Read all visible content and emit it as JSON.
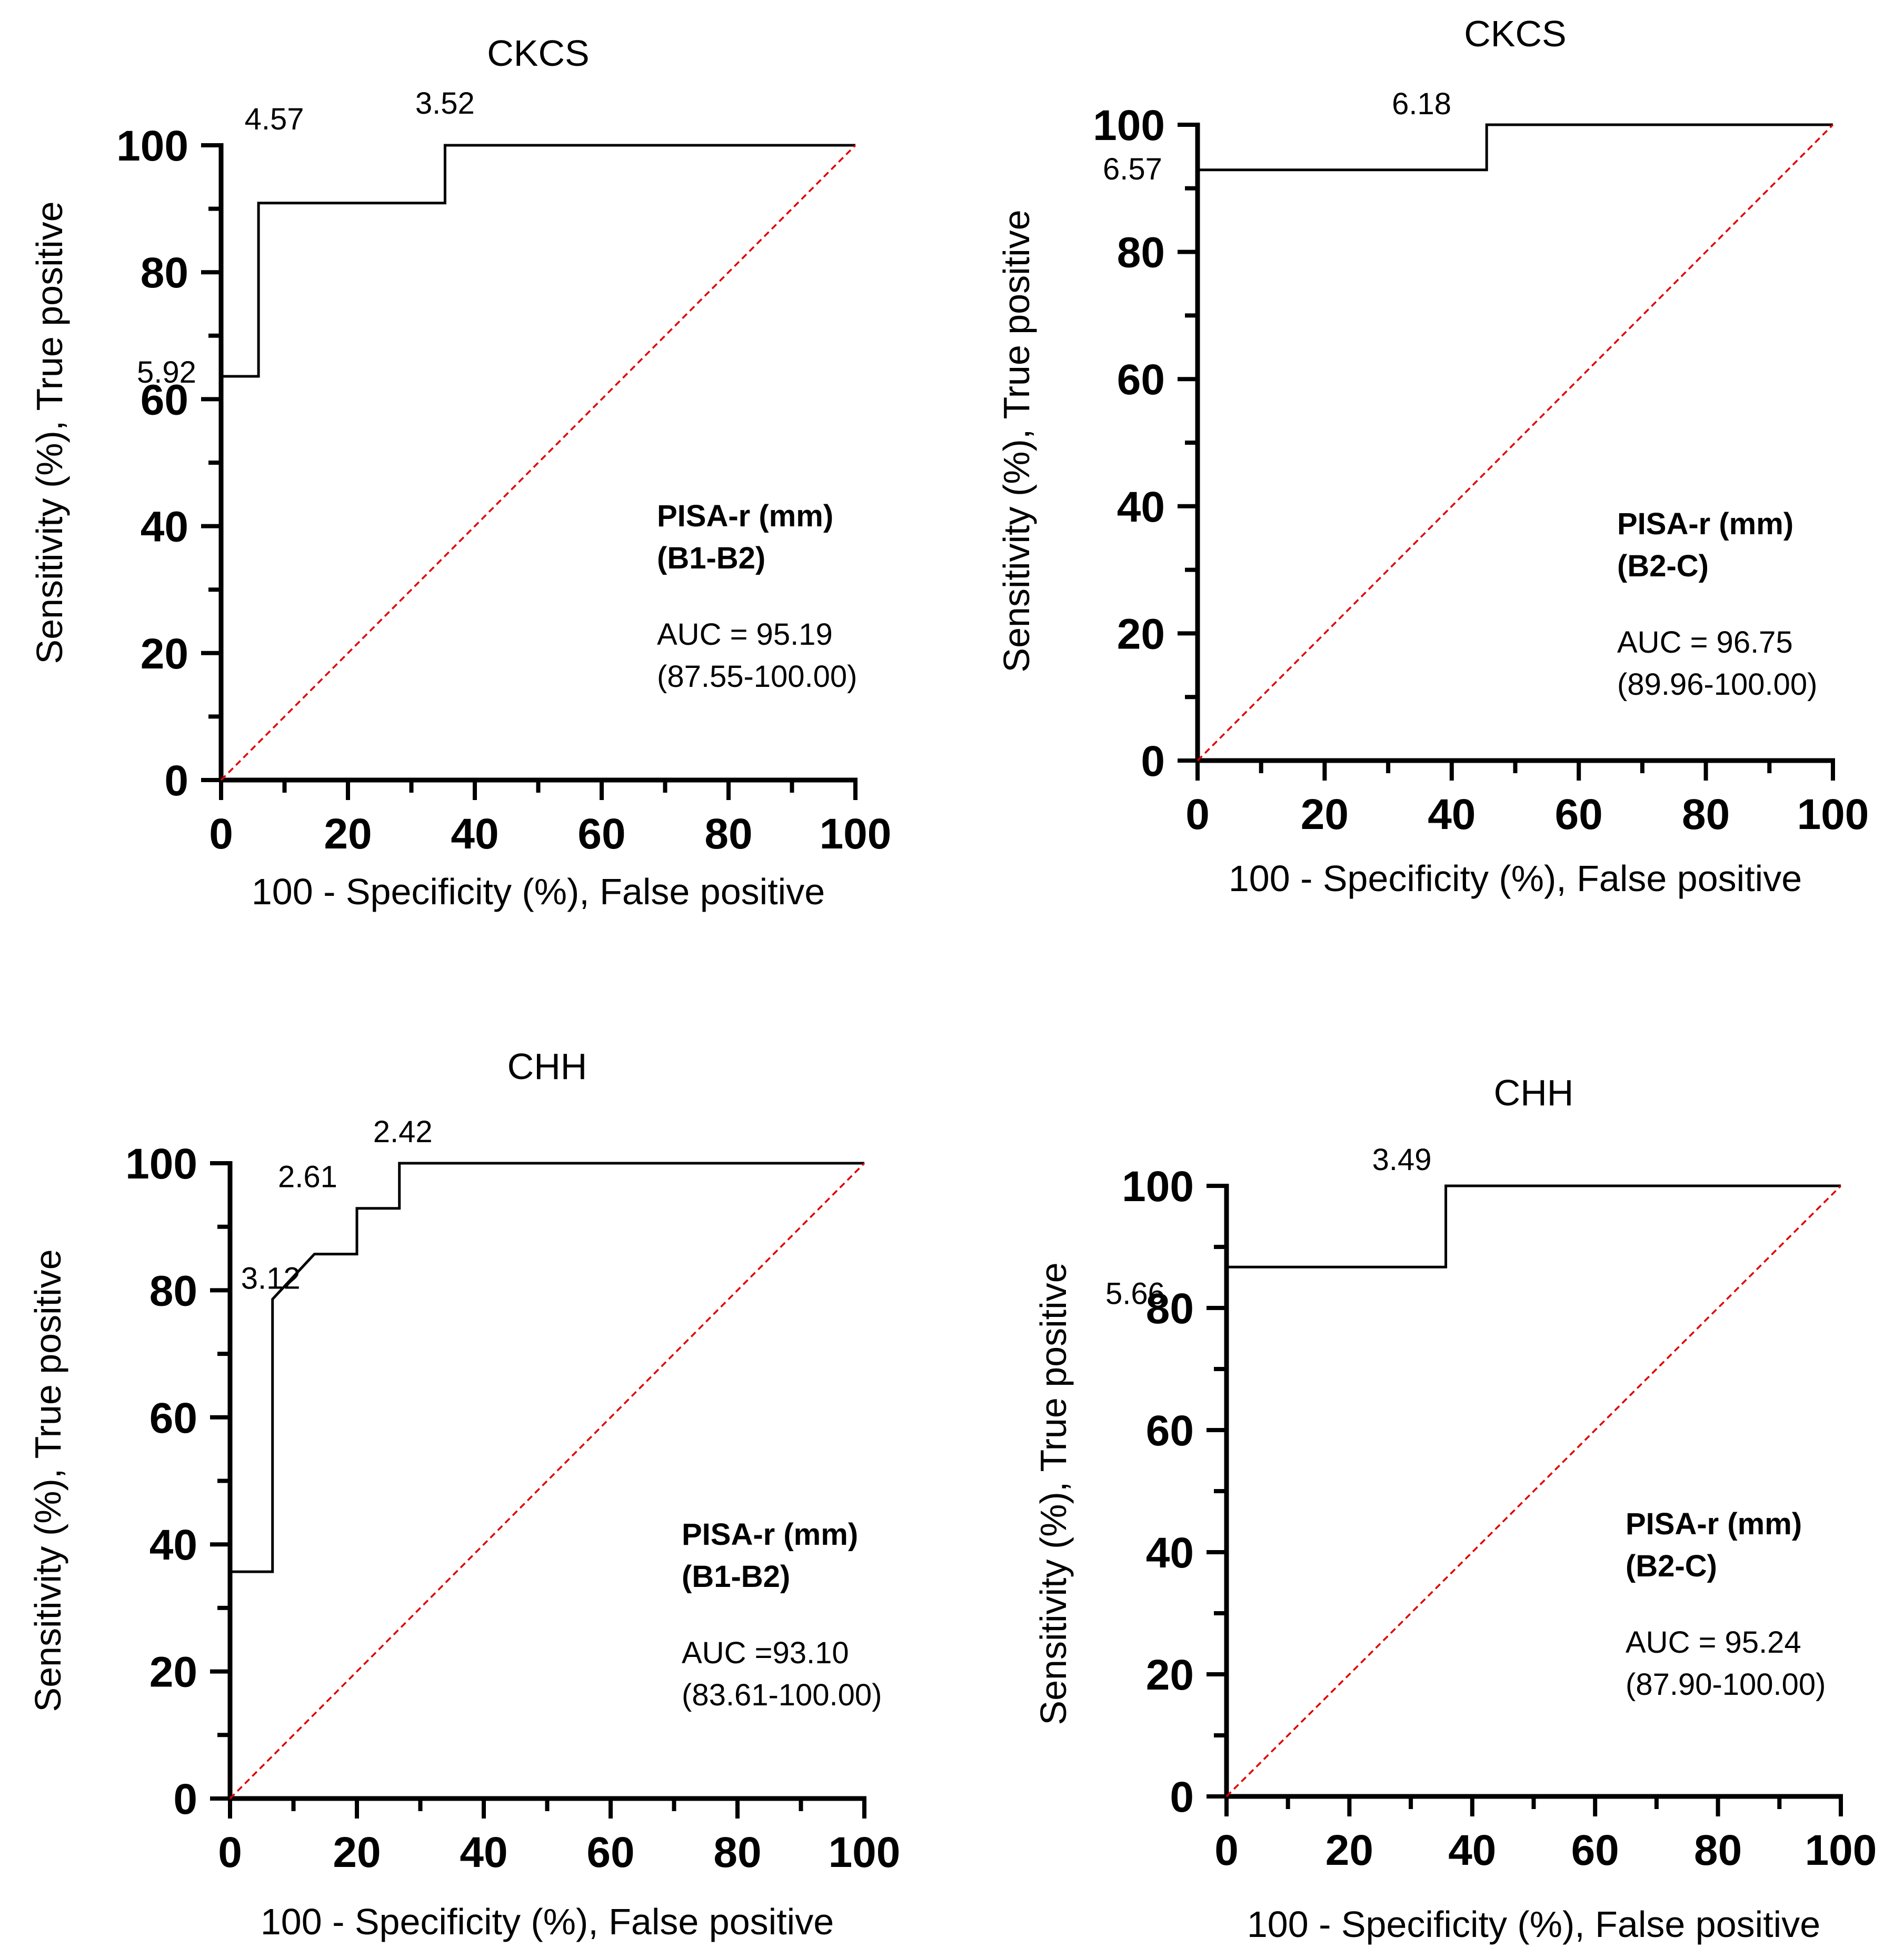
{
  "chart_data": [
    {
      "type": "line",
      "title": "CKCS",
      "xlabel": "100 - Specificity (%), False positive",
      "ylabel": "Sensitivity (%), True positive",
      "xlim": [
        0,
        100
      ],
      "ylim": [
        0,
        100
      ],
      "xticks": [
        "0",
        "20",
        "40",
        "60",
        "80",
        "100"
      ],
      "yticks": [
        "0",
        "20",
        "40",
        "60",
        "80",
        "100"
      ],
      "series": [
        {
          "name": "ROC",
          "color": "#000000",
          "x": [
            0,
            0,
            5.9,
            5.9,
            35.3,
            35.3,
            100
          ],
          "y": [
            0,
            63.6,
            63.6,
            90.9,
            90.9,
            100,
            100
          ]
        },
        {
          "name": "Reference",
          "color": "#e00000",
          "x": [
            0,
            100
          ],
          "y": [
            0,
            100
          ]
        }
      ],
      "cutoff_labels": [
        {
          "text": "5.92",
          "x": 0,
          "y": 63.6
        },
        {
          "text": "4.57",
          "x": 5.9,
          "y": 100
        },
        {
          "text": "3.52",
          "x": 35.3,
          "y": 100
        }
      ],
      "annotation": {
        "title": "PISA-r (mm)",
        "group": "(B1-B2)",
        "auc": "AUC = 95.19",
        "ci": "(87.55-100.00)"
      }
    },
    {
      "type": "line",
      "title": "CKCS",
      "xlabel": "100 - Specificity (%), False positive",
      "ylabel": "Sensitivity (%), True positive",
      "xlim": [
        0,
        100
      ],
      "ylim": [
        0,
        100
      ],
      "xticks": [
        "0",
        "20",
        "40",
        "60",
        "80",
        "100"
      ],
      "yticks": [
        "0",
        "20",
        "40",
        "60",
        "80",
        "100"
      ],
      "series": [
        {
          "name": "ROC",
          "color": "#000000",
          "x": [
            0,
            0,
            45.5,
            45.5,
            100
          ],
          "y": [
            0,
            92.9,
            92.9,
            100,
            100
          ]
        },
        {
          "name": "Reference",
          "color": "#e00000",
          "x": [
            0,
            100
          ],
          "y": [
            0,
            100
          ]
        }
      ],
      "cutoff_labels": [
        {
          "text": "6.57",
          "x": 0,
          "y": 92.9
        },
        {
          "text": "6.18",
          "x": 45.5,
          "y": 100
        }
      ],
      "annotation": {
        "title": "PISA-r (mm)",
        "group": "(B2-C)",
        "auc": "AUC = 96.75",
        "ci": "(89.96-100.00)"
      }
    },
    {
      "type": "line",
      "title": "CHH",
      "xlabel": "100 - Specificity (%), False positive",
      "ylabel": "Sensitivity (%), True positive",
      "xlim": [
        0,
        100
      ],
      "ylim": [
        0,
        100
      ],
      "xticks": [
        "0",
        "20",
        "40",
        "60",
        "80",
        "100"
      ],
      "yticks": [
        "0",
        "20",
        "40",
        "60",
        "80",
        "100"
      ],
      "series": [
        {
          "name": "ROC",
          "color": "#000000",
          "x": [
            0,
            0,
            6.7,
            6.7,
            13.3,
            20,
            20,
            26.7,
            26.7,
            100
          ],
          "y": [
            0,
            35.7,
            35.7,
            78.6,
            85.7,
            85.7,
            92.9,
            92.9,
            100,
            100
          ]
        },
        {
          "name": "Reference",
          "color": "#e00000",
          "x": [
            0,
            100
          ],
          "y": [
            0,
            100
          ]
        }
      ],
      "cutoff_labels": [
        {
          "text": "3.12",
          "x": 6.7,
          "y": 78.6
        },
        {
          "text": "2.61",
          "x": 20,
          "y": 92.9
        },
        {
          "text": "2.42",
          "x": 26.7,
          "y": 100
        }
      ],
      "annotation": {
        "title": "PISA-r (mm)",
        "group": "(B1-B2)",
        "auc": "AUC =93.10",
        "ci": "(83.61-100.00)"
      }
    },
    {
      "type": "line",
      "title": "CHH",
      "xlabel": "100 - Specificity (%), False positive",
      "ylabel": "Sensitivity (%), True positive",
      "xlim": [
        0,
        100
      ],
      "ylim": [
        0,
        100
      ],
      "xticks": [
        "0",
        "20",
        "40",
        "60",
        "80",
        "100"
      ],
      "yticks": [
        "0",
        "20",
        "40",
        "60",
        "80",
        "100"
      ],
      "series": [
        {
          "name": "ROC",
          "color": "#000000",
          "x": [
            0,
            0,
            35.7,
            35.7,
            100
          ],
          "y": [
            0,
            86.7,
            86.7,
            100,
            100
          ]
        },
        {
          "name": "Reference",
          "color": "#e00000",
          "x": [
            0,
            100
          ],
          "y": [
            0,
            100
          ]
        }
      ],
      "cutoff_labels": [
        {
          "text": "5.66",
          "x": 0,
          "y": 86.7
        },
        {
          "text": "3.49",
          "x": 35.7,
          "y": 100
        }
      ],
      "annotation": {
        "title": "PISA-r (mm)",
        "group": "(B2-C)",
        "auc": "AUC = 95.24",
        "ci": "(87.90-100.00)"
      }
    }
  ]
}
